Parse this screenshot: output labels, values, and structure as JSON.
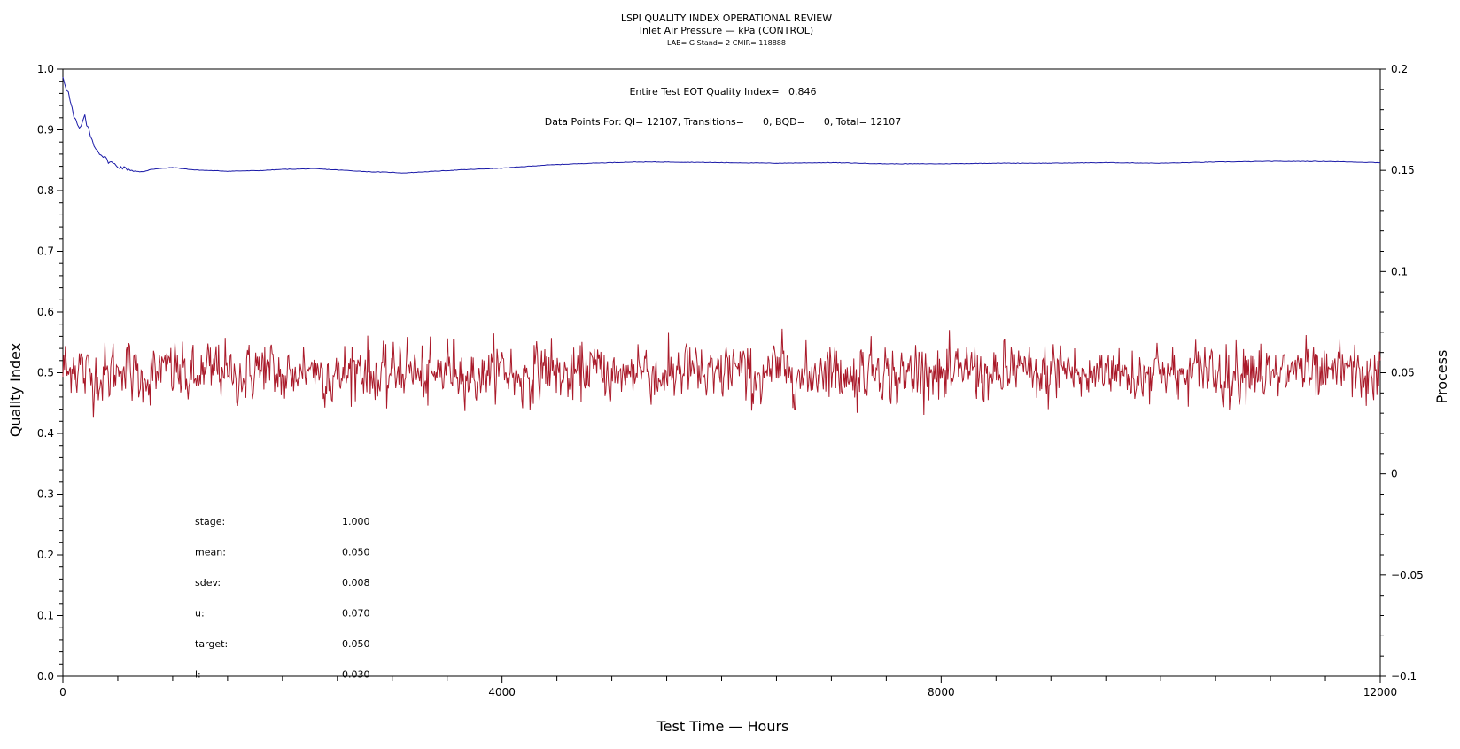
{
  "chart_data": {
    "type": "line",
    "title": "LSPI QUALITY INDEX OPERATIONAL REVIEW",
    "subtitle": "Inlet Air Pressure — kPa (CONTROL)",
    "subtitle2": "LAB= G Stand= 2 CMIR= 118888",
    "xlabel": "Test Time — Hours",
    "ylabel_left": "Quality Index",
    "ylabel_right": "Process",
    "xlim": [
      0,
      12000
    ],
    "ylim_left": [
      0.0,
      1.0
    ],
    "ylim_right": [
      -0.1,
      0.2
    ],
    "x_ticks": [
      "0",
      "4000",
      "8000",
      "12000"
    ],
    "y_left_ticks": [
      "0.0",
      "0.1",
      "0.2",
      "0.3",
      "0.4",
      "0.5",
      "0.6",
      "0.7",
      "0.8",
      "0.9",
      "1.0"
    ],
    "y_right_ticks": [
      "−0.1",
      "−0.05",
      "0",
      "0.05",
      "0.1",
      "0.15",
      "0.2"
    ],
    "annotation_qi": "Entire Test EOT Quality Index=   0.846",
    "annotation_points": "Data Points For: QI= 12107, Transitions=      0, BQD=      0, Total= 12107",
    "stats": [
      {
        "label": "stage:",
        "value": "1.000"
      },
      {
        "label": "mean:",
        "value": "0.050"
      },
      {
        "label": "sdev:",
        "value": "0.008"
      },
      {
        "label": "u:",
        "value": "0.070"
      },
      {
        "label": "target:",
        "value": "0.050"
      },
      {
        "label": "l:",
        "value": "0.030"
      }
    ],
    "series": [
      {
        "axis": "left",
        "color": "#1a1aa8",
        "x": [
          0,
          50,
          100,
          150,
          200,
          250,
          300,
          350,
          400,
          500,
          600,
          700,
          800,
          1000,
          1200,
          1500,
          1800,
          2000,
          2300,
          2600,
          2800,
          3000,
          3100,
          3300,
          3600,
          4000,
          4400,
          4800,
          5200,
          5500,
          6000,
          6500,
          7000,
          7500,
          8000,
          8500,
          9000,
          9500,
          10000,
          10500,
          11000,
          11500,
          12000
        ],
        "y": [
          0.99,
          0.96,
          0.92,
          0.9,
          0.92,
          0.89,
          0.87,
          0.86,
          0.85,
          0.84,
          0.835,
          0.83,
          0.835,
          0.838,
          0.834,
          0.832,
          0.833,
          0.835,
          0.836,
          0.833,
          0.831,
          0.83,
          0.829,
          0.831,
          0.834,
          0.837,
          0.842,
          0.845,
          0.847,
          0.847,
          0.846,
          0.845,
          0.846,
          0.844,
          0.844,
          0.845,
          0.845,
          0.846,
          0.845,
          0.847,
          0.848,
          0.848,
          0.846
        ]
      },
      {
        "axis": "right",
        "color": "#aa1a2a",
        "mean": 0.05,
        "sdev": 0.008,
        "n_points": 1600
      }
    ]
  }
}
